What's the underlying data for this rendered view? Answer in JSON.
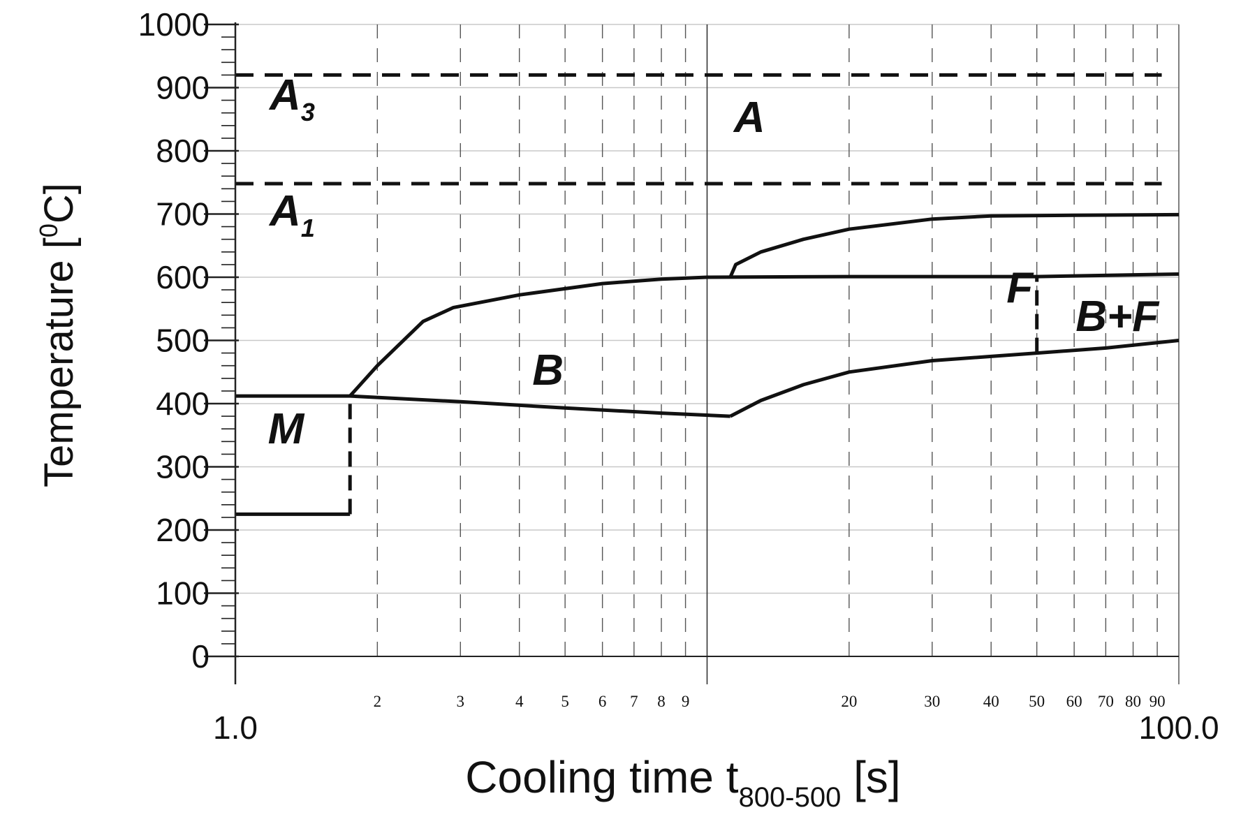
{
  "chart_data": {
    "type": "line",
    "xscale": "log",
    "xlim": [
      1.0,
      100.0
    ],
    "ylim": [
      0,
      1000
    ],
    "xlabel": {
      "main": "Cooling time t",
      "sub": "800-500",
      "unit": " [s]"
    },
    "ylabel": {
      "main": "Temperature [",
      "sup": "0",
      "unit": "C]"
    },
    "y_ticks": [
      0,
      100,
      200,
      300,
      400,
      500,
      600,
      700,
      800,
      900,
      1000
    ],
    "y_tick_labels": [
      "0",
      "100",
      "200",
      "300",
      "400",
      "500",
      "600",
      "700",
      "800",
      "900",
      "1000"
    ],
    "y_minor_step": 20,
    "x_end_labels": [
      {
        "value": 1.0,
        "label": "1.0"
      },
      {
        "value": 100.0,
        "label": "100.0"
      }
    ],
    "x_minor_ticks": [
      {
        "value": 2,
        "label": "2"
      },
      {
        "value": 3,
        "label": "3"
      },
      {
        "value": 4,
        "label": "4"
      },
      {
        "value": 5,
        "label": "5"
      },
      {
        "value": 6,
        "label": "6"
      },
      {
        "value": 7,
        "label": "7"
      },
      {
        "value": 8,
        "label": "8"
      },
      {
        "value": 9,
        "label": "9"
      },
      {
        "value": 20,
        "label": "20"
      },
      {
        "value": 30,
        "label": "30"
      },
      {
        "value": 40,
        "label": "40"
      },
      {
        "value": 50,
        "label": "50"
      },
      {
        "value": 60,
        "label": "60"
      },
      {
        "value": 70,
        "label": "70"
      },
      {
        "value": 80,
        "label": "80"
      },
      {
        "value": 90,
        "label": "90"
      }
    ],
    "x_major_grid": [
      10
    ],
    "y_grid": true,
    "reference_lines": [
      {
        "name": "A3",
        "y": 920,
        "x_from": 1.0,
        "x_to": 92,
        "style": "dashed"
      },
      {
        "name": "A1",
        "y": 748,
        "x_from": 1.0,
        "x_to": 92,
        "style": "dashed"
      }
    ],
    "curves": [
      {
        "id": "ms-line",
        "style": "solid",
        "points": [
          [
            1.0,
            412
          ],
          [
            1.75,
            412
          ],
          [
            3.0,
            403
          ],
          [
            5.0,
            393
          ],
          [
            8.0,
            385
          ],
          [
            11.2,
            380
          ]
        ]
      },
      {
        "id": "mf-line",
        "style": "solid",
        "points": [
          [
            1.0,
            225
          ],
          [
            1.75,
            225
          ]
        ]
      },
      {
        "id": "martensite-boundary",
        "style": "dashed",
        "points": [
          [
            1.75,
            225
          ],
          [
            1.75,
            412
          ]
        ]
      },
      {
        "id": "bainite-start",
        "style": "solid",
        "points": [
          [
            1.75,
            412
          ],
          [
            2.0,
            460
          ],
          [
            2.5,
            530
          ],
          [
            2.9,
            552
          ],
          [
            4.0,
            572
          ],
          [
            6.0,
            590
          ],
          [
            8.0,
            597
          ],
          [
            10.0,
            600
          ],
          [
            20.0,
            601
          ],
          [
            50.0,
            601
          ],
          [
            100.0,
            605
          ]
        ]
      },
      {
        "id": "ferrite-start",
        "style": "solid",
        "points": [
          [
            11.2,
            600
          ],
          [
            11.5,
            620
          ],
          [
            13.0,
            640
          ],
          [
            16.0,
            660
          ],
          [
            20.0,
            676
          ],
          [
            30.0,
            692
          ],
          [
            40.0,
            697
          ],
          [
            60.0,
            698
          ],
          [
            100.0,
            699
          ]
        ]
      },
      {
        "id": "bainite-finish",
        "style": "solid",
        "points": [
          [
            11.2,
            380
          ],
          [
            13.0,
            405
          ],
          [
            16.0,
            430
          ],
          [
            20.0,
            450
          ],
          [
            30.0,
            468
          ],
          [
            50.0,
            480
          ],
          [
            70.0,
            488
          ],
          [
            100.0,
            500
          ]
        ]
      },
      {
        "id": "bf-boundary",
        "style": "dashed",
        "points": [
          [
            50.0,
            480
          ],
          [
            50.0,
            601
          ]
        ]
      }
    ],
    "annotations": [
      {
        "id": "A3",
        "text": "A",
        "sub": "3",
        "x": 1.32,
        "y": 865
      },
      {
        "id": "A1",
        "text": "A",
        "sub": "1",
        "x": 1.32,
        "y": 682
      },
      {
        "id": "A",
        "text": "A",
        "x": 12.3,
        "y": 830
      },
      {
        "id": "F",
        "text": "F",
        "x": 46.0,
        "y": 560
      },
      {
        "id": "B+F",
        "text": "B+F",
        "x": 74.0,
        "y": 515
      },
      {
        "id": "B",
        "text": "B",
        "x": 4.6,
        "y": 430
      },
      {
        "id": "M",
        "text": "M",
        "x": 1.28,
        "y": 337
      }
    ]
  }
}
